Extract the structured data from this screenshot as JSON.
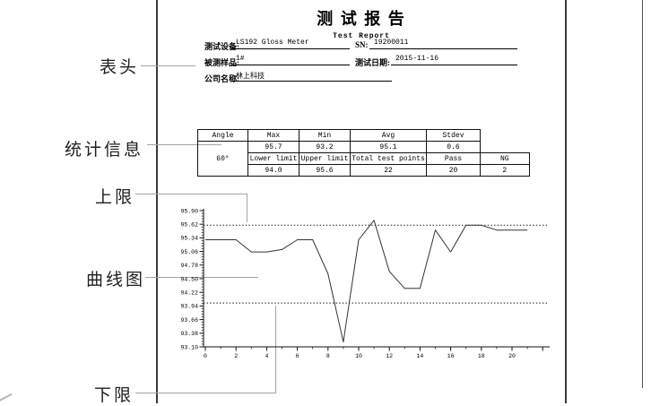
{
  "callouts": {
    "header": "表头",
    "stats": "统计信息",
    "upper": "上限",
    "curve": "曲线图",
    "lower": "下限"
  },
  "report": {
    "title": "测 试 报 告",
    "subtitle": "Test Report",
    "fields": {
      "device_label": "测试设备:",
      "device": "LS192 Gloss Meter",
      "sn_label": "SN:",
      "sn": "19200011",
      "sample_label": "被测样品:",
      "sample": "1#",
      "date_label": "测试日期:",
      "date": "2015-11-16",
      "company_label": "公司名称:",
      "company": "林上科技"
    },
    "stats": {
      "angle_h": "Angle",
      "max_h": "Max",
      "min_h": "Min",
      "avg_h": "Avg",
      "stdev_h": "Stdev",
      "angle": "60°",
      "max": "95.7",
      "min": "93.2",
      "avg": "95.1",
      "stdev": "0.6",
      "lower_h": "Lower limit",
      "upper_h": "Upper limit",
      "total_h": "Total test points",
      "pass_h": "Pass",
      "ng_h": "NG",
      "lower": "94.0",
      "upper": "95.6",
      "total": "22",
      "pass": "20",
      "ng": "2"
    }
  },
  "chart_data": {
    "type": "line",
    "title": "",
    "xlabel": "",
    "ylabel": "",
    "x": [
      0,
      1,
      2,
      3,
      4,
      5,
      6,
      7,
      8,
      9,
      10,
      11,
      12,
      13,
      14,
      15,
      16,
      17,
      18,
      19,
      20,
      21
    ],
    "values": [
      95.3,
      95.3,
      95.3,
      95.05,
      95.05,
      95.1,
      95.3,
      95.3,
      94.6,
      93.2,
      95.3,
      95.7,
      94.65,
      94.3,
      94.3,
      95.5,
      95.05,
      95.6,
      95.6,
      95.5,
      95.5,
      95.5
    ],
    "upper_limit": 95.6,
    "lower_limit": 94.0,
    "ylim": [
      93.1,
      95.9
    ],
    "yticks": [
      95.9,
      95.62,
      95.34,
      95.06,
      94.78,
      94.5,
      94.22,
      93.94,
      93.66,
      93.38,
      93.1
    ],
    "xticks": [
      0,
      2,
      4,
      6,
      8,
      10,
      12,
      14,
      16,
      18,
      20
    ],
    "grid": false,
    "legend": null,
    "limit_line_style": "dotted"
  }
}
